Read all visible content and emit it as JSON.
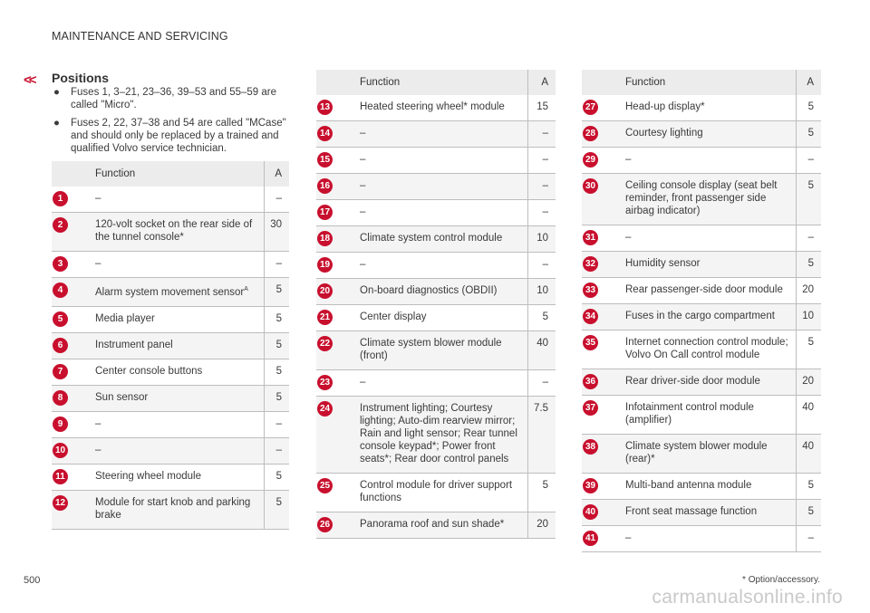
{
  "header": {
    "section": "MAINTENANCE AND SERVICING",
    "back_symbol": "<<"
  },
  "title": "Positions",
  "bullets": [
    "Fuses 1, 3–21, 23–36, 39–53  and 55–59 are called \"Micro\".",
    "Fuses 2, 22, 37–38  and 54 are called \"MCase\" and should only be replaced by a trained and qualified Volvo service technician."
  ],
  "table_headers": {
    "function": "Function",
    "amp": "A"
  },
  "tables": [
    [
      {
        "n": "1",
        "f": "–",
        "a": "–"
      },
      {
        "n": "2",
        "f": "120-volt socket on the rear side of the tunnel console*",
        "a": "30"
      },
      {
        "n": "3",
        "f": "–",
        "a": "–"
      },
      {
        "n": "4",
        "f": "Alarm system movement sensor",
        "sup": "A",
        "a": "5"
      },
      {
        "n": "5",
        "f": "Media player",
        "a": "5"
      },
      {
        "n": "6",
        "f": "Instrument panel",
        "a": "5"
      },
      {
        "n": "7",
        "f": "Center console buttons",
        "a": "5"
      },
      {
        "n": "8",
        "f": "Sun sensor",
        "a": "5"
      },
      {
        "n": "9",
        "f": "–",
        "a": "–"
      },
      {
        "n": "10",
        "f": "–",
        "a": "–"
      },
      {
        "n": "11",
        "f": "Steering wheel module",
        "a": "5"
      },
      {
        "n": "12",
        "f": "Module for start knob and parking brake",
        "a": "5"
      }
    ],
    [
      {
        "n": "13",
        "f": "Heated steering wheel* module",
        "a": "15"
      },
      {
        "n": "14",
        "f": "–",
        "a": "–"
      },
      {
        "n": "15",
        "f": "–",
        "a": "–"
      },
      {
        "n": "16",
        "f": "–",
        "a": "–"
      },
      {
        "n": "17",
        "f": "–",
        "a": "–"
      },
      {
        "n": "18",
        "f": "Climate system control module",
        "a": "10"
      },
      {
        "n": "19",
        "f": "–",
        "a": "–"
      },
      {
        "n": "20",
        "f": "On-board diagnostics (OBDII)",
        "a": "10"
      },
      {
        "n": "21",
        "f": "Center display",
        "a": "5"
      },
      {
        "n": "22",
        "f": "Climate system blower module (front)",
        "a": "40"
      },
      {
        "n": "23",
        "f": "–",
        "a": "–"
      },
      {
        "n": "24",
        "f": "Instrument lighting; Courtesy lighting; Auto-dim rearview mirror; Rain and light sensor; Rear tunnel console keypad*; Power front seats*; Rear door control panels",
        "a": "7.5"
      },
      {
        "n": "25",
        "f": "Control module for driver support functions",
        "a": "5"
      },
      {
        "n": "26",
        "f": "Panorama roof and sun shade*",
        "a": "20"
      }
    ],
    [
      {
        "n": "27",
        "f": "Head-up display*",
        "a": "5"
      },
      {
        "n": "28",
        "f": "Courtesy lighting",
        "a": "5"
      },
      {
        "n": "29",
        "f": "–",
        "a": "–"
      },
      {
        "n": "30",
        "f": "Ceiling console display (seat belt reminder, front passenger side airbag indicator)",
        "a": "5"
      },
      {
        "n": "31",
        "f": "–",
        "a": "–"
      },
      {
        "n": "32",
        "f": "Humidity sensor",
        "a": "5"
      },
      {
        "n": "33",
        "f": "Rear passenger-side door module",
        "a": "20"
      },
      {
        "n": "34",
        "f": "Fuses in the cargo compartment",
        "a": "10"
      },
      {
        "n": "35",
        "f": "Internet connection control module; Volvo On Call control module",
        "a": "5"
      },
      {
        "n": "36",
        "f": "Rear driver-side door module",
        "a": "20"
      },
      {
        "n": "37",
        "f": "Infotainment control module (amplifier)",
        "a": "40"
      },
      {
        "n": "38",
        "f": "Climate system blower module (rear)*",
        "a": "40"
      },
      {
        "n": "39",
        "f": "Multi-band antenna module",
        "a": "5"
      },
      {
        "n": "40",
        "f": "Front seat massage function",
        "a": "5"
      },
      {
        "n": "41",
        "f": "–",
        "a": "–"
      }
    ]
  ],
  "footer": {
    "page_number": "500",
    "footnote": "* Option/accessory.",
    "watermark": "carmanualsonline.info"
  },
  "colors": {
    "accent": "#c8102e",
    "header_bg": "#ececec",
    "row_alt": "#f4f4f4"
  }
}
